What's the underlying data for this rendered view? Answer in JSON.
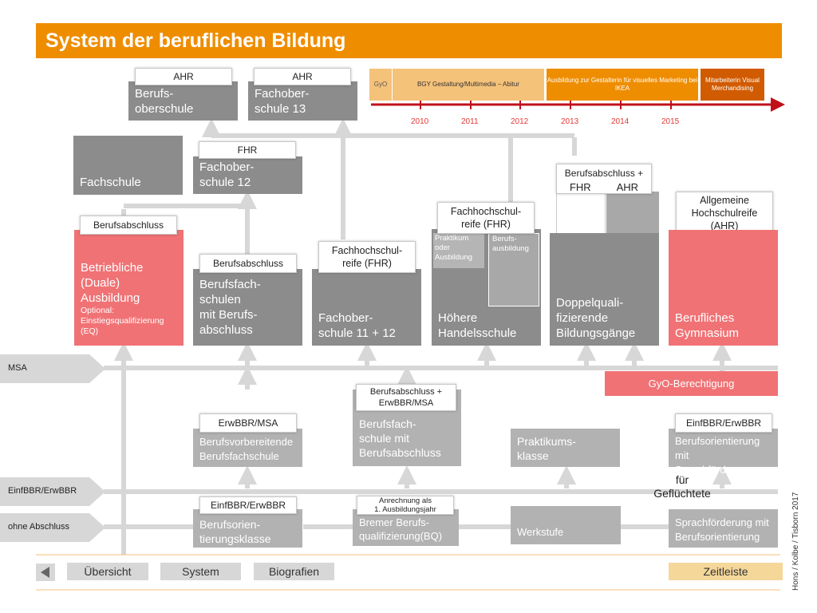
{
  "title": "System der beruflichen Bildung",
  "colors": {
    "accent": "#ef8d00",
    "red": "#f07275",
    "gray": "#8c8c8c",
    "timeline_red": "#c0111b"
  },
  "timeline": {
    "segments": [
      "GyO",
      "BGY Gestaltung/Multimedia – Abitur",
      "Ausbildung zur Gestalterin für visuelles Marketing bei IKEA",
      "Mitarbeiterin Visual Merchandising"
    ],
    "years": [
      "2010",
      "2011",
      "2012",
      "2013",
      "2014",
      "2015"
    ]
  },
  "top": {
    "bos": {
      "tag": "AHR",
      "label": "Berufs-\noberschule"
    },
    "fos13": {
      "tag": "AHR",
      "label": "Fachober-\nschule 13"
    }
  },
  "row2": {
    "fachschule": "Fachschule",
    "fos12": {
      "tag": "FHR",
      "label": "Fachober-\nschule 12"
    },
    "doppel_tag": "Berufsabschluss +",
    "doppel_fhr": "FHR",
    "doppel_ahr": "AHR",
    "agh_tag": "Allgemeine\nHochschulreife\n(AHR)"
  },
  "row3": {
    "duale": {
      "tag": "Berufsabschluss",
      "label": "Betriebliche\n(Duale)\nAusbildung",
      "sub": "Optional:\nEinstiegsqualifizierung\n(EQ)"
    },
    "bfs": {
      "tag": "Berufsabschluss",
      "label": "Berufsfach-\nschulen\nmit Berufs-\nabschluss"
    },
    "fos1112": {
      "tag": "Fachhochschul-\nreife (FHR)",
      "label": "Fachober-\nschule 11 + 12"
    },
    "hhs": {
      "tag": "Fachhochschul-\nreife (FHR)",
      "label": "Höhere\nHandelsschule",
      "praktikum": "Praktikum\noder\nAusbildung",
      "berufsausbildung": "Berufs-\nausbildung"
    },
    "doppel": {
      "label": "Doppelquali-\nfizierende\nBildungsgänge"
    },
    "gym": {
      "label": "Berufliches\nGymnasium"
    }
  },
  "lines": {
    "msa": "MSA",
    "gyo": "GyO-Berechtigung",
    "einf": "EinfBBR/ErwBBR",
    "ohne": "ohne Abschluss"
  },
  "row4": {
    "bvb": {
      "tag": "ErwBBR/MSA",
      "label": "Berufsvorbereitende\nBerufsfachschule"
    },
    "bfs2": {
      "tag": "Berufsabschluss +\nErwBBR/MSA",
      "label": "Berufsfach-\nschule mit\nBerufsabschluss"
    },
    "prak": {
      "label": "Praktikums-\nklasse"
    },
    "bosf": {
      "tag": "EinfBBR/ErwBBR",
      "label": "Berufsorientierung mit\nSprachförderung",
      "note": "für\nGeflüchtete"
    }
  },
  "row5": {
    "bok": {
      "tag": "EinfBBR/ErwBBR",
      "label": "Berufsorien-\ntierungsklasse"
    },
    "bq": {
      "tag": "Anrechnung als\n1. Ausbildungsjahr",
      "label": "Bremer Berufs-\nqualifizierung(BQ)"
    },
    "werk": {
      "label": "Werkstufe"
    },
    "spf": {
      "label": "Sprachförderung mit\nBerufsorientierung"
    }
  },
  "nav": {
    "uebersicht": "Übersicht",
    "system": "System",
    "biografien": "Biografien",
    "zeitleiste": "Zeitleiste"
  },
  "credit": "Hons / Kolbe / Tisborn 2017"
}
